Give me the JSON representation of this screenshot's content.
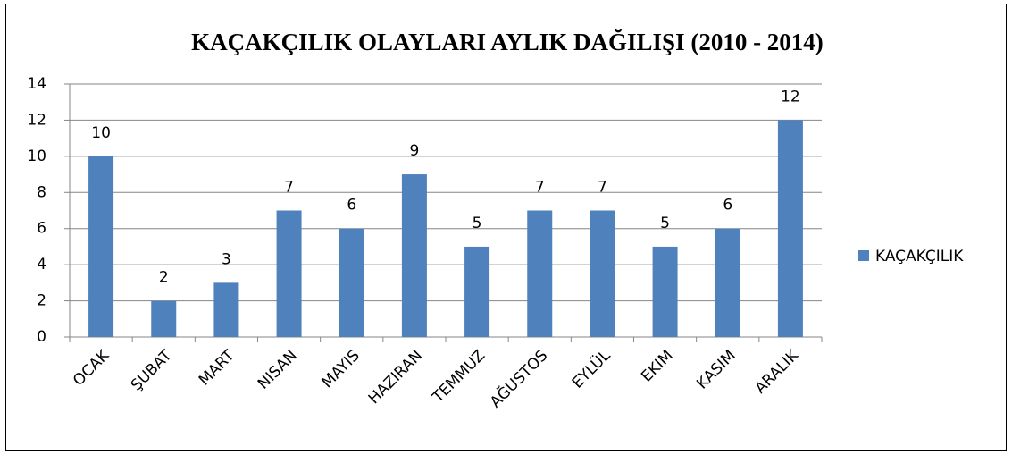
{
  "chart_data": {
    "type": "bar",
    "title": "KAÇAKÇILIK OLAYLARI AYLIK DAĞILIŞI (2010 - 2014)",
    "categories": [
      "OCAK",
      "ŞUBAT",
      "MART",
      "NISAN",
      "MAYIS",
      "HAZIRAN",
      "TEMMUZ",
      "AĞUSTOS",
      "EYLÜL",
      "EKIM",
      "KASIM",
      "ARALIK"
    ],
    "series": [
      {
        "name": "KAÇAKÇILIK",
        "color": "#4f81bd",
        "values": [
          10,
          2,
          3,
          7,
          6,
          9,
          5,
          7,
          7,
          5,
          6,
          12
        ]
      }
    ],
    "ylim": [
      0,
      14
    ],
    "yticks": [
      0,
      2,
      4,
      6,
      8,
      10,
      12,
      14
    ],
    "grid": true,
    "legend": "right"
  }
}
